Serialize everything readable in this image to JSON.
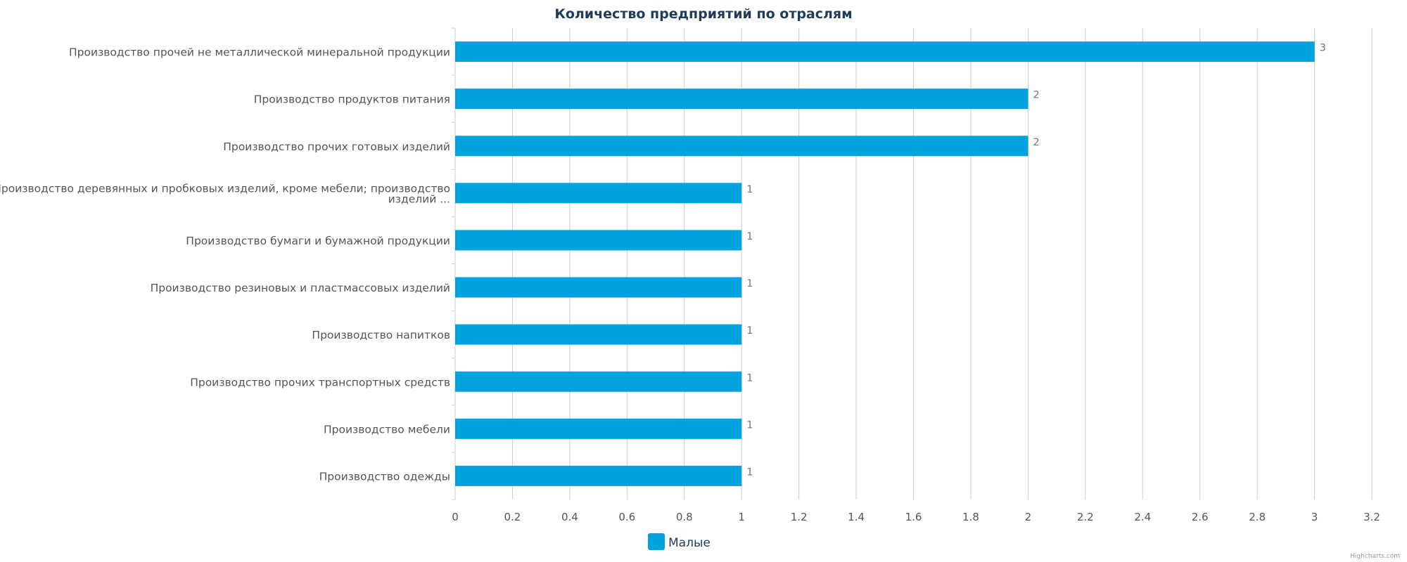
{
  "chart_data": {
    "type": "bar",
    "orientation": "horizontal",
    "title": "Количество предприятий по отраслям",
    "categories": [
      "Производство прочей не металлической минеральной продукции",
      "Производство продуктов питания",
      "Производство прочих готовых изделий",
      "Производство деревянных и пробковых изделий, кроме мебели; производство изделий ...",
      "Производство бумаги и бумажной продукции",
      "Производство резиновых и пластмассовых изделий",
      "Производство напитков",
      "Производство прочих транспортных средств",
      "Производство мебели",
      "Производство одежды"
    ],
    "category_lines": [
      [
        "Производство прочей не металлической минеральной продукции"
      ],
      [
        "Производство продуктов питания"
      ],
      [
        "Производство прочих готовых изделий"
      ],
      [
        "Производство деревянных и пробковых изделий, кроме мебели; производство",
        "изделий ..."
      ],
      [
        "Производство бумаги и бумажной продукции"
      ],
      [
        "Производство резиновых и пластмассовых изделий"
      ],
      [
        "Производство напитков"
      ],
      [
        "Производство прочих транспортных средств"
      ],
      [
        "Производство мебели"
      ],
      [
        "Производство одежды"
      ]
    ],
    "series": [
      {
        "name": "Малые",
        "values": [
          3,
          2,
          2,
          1,
          1,
          1,
          1,
          1,
          1,
          1
        ],
        "color": "#00a3e0"
      }
    ],
    "data_labels": [
      "3",
      "2",
      "2",
      "1",
      "1",
      "1",
      "1",
      "1",
      "1",
      "1"
    ],
    "xlim": [
      0,
      3.2
    ],
    "ticks": [
      0,
      0.2,
      0.4,
      0.6,
      0.8,
      1,
      1.2,
      1.4,
      1.6,
      1.8,
      2,
      2.2,
      2.4,
      2.6,
      2.8,
      3,
      3.2
    ],
    "tick_labels": [
      "0",
      "0.2",
      "0.4",
      "0.6",
      "0.8",
      "1",
      "1.2",
      "1.4",
      "1.6",
      "1.8",
      "2",
      "2.2",
      "2.4",
      "2.6",
      "2.8",
      "3",
      "3.2"
    ],
    "grid": true,
    "legend_position": "bottom-center",
    "credits": "Highcharts.com"
  },
  "colors": {
    "bar": "#00a3e0",
    "grid": "#cccccc",
    "title": "#1f3c5a",
    "label": "#555555",
    "data_label": "#777777"
  }
}
